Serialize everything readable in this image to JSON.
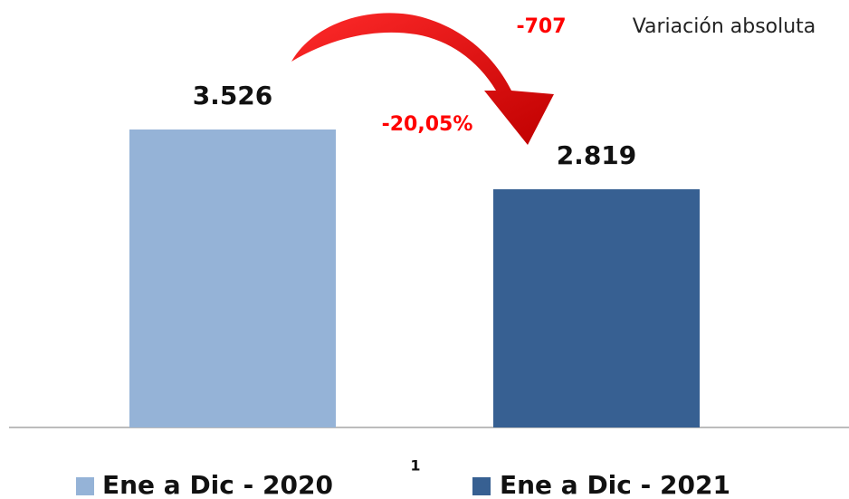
{
  "chart_data": {
    "type": "bar",
    "categories": [
      "1"
    ],
    "series": [
      {
        "name": "Ene a Dic - 2020",
        "color": "#95b3d7",
        "values": [
          3526
        ],
        "value_labels": [
          "3.526"
        ]
      },
      {
        "name": "Ene a Dic - 2021",
        "color": "#376092",
        "values": [
          2819
        ],
        "value_labels": [
          "2.819"
        ]
      }
    ],
    "annotations": [
      {
        "text": "-707",
        "color": "#ff0000"
      },
      {
        "text": "Variación absoluta",
        "color": "#222222"
      },
      {
        "text": "-20,05%",
        "color": "#ff0000"
      }
    ]
  }
}
